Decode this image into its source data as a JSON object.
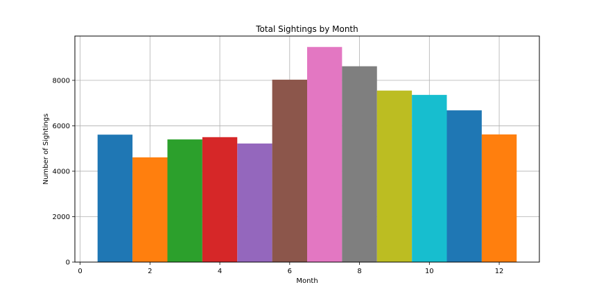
{
  "chart_data": {
    "type": "bar",
    "title": "Total Sightings by Month",
    "xlabel": "Month",
    "ylabel": "Number of Sightings",
    "categories": [
      1,
      2,
      3,
      4,
      5,
      6,
      7,
      8,
      9,
      10,
      11,
      12
    ],
    "values": [
      5610,
      4610,
      5400,
      5500,
      5220,
      8030,
      9470,
      8620,
      7550,
      7360,
      6680,
      5620
    ],
    "colors": [
      "#1f77b4",
      "#ff7f0e",
      "#2ca02c",
      "#d62728",
      "#9467bd",
      "#8c564b",
      "#e377c2",
      "#7f7f7f",
      "#bcbd22",
      "#17becf",
      "#1f77b4",
      "#ff7f0e"
    ],
    "bar_width": 1.0,
    "xlim": [
      -0.15,
      13.15
    ],
    "ylim": [
      0,
      9950
    ],
    "xticks": [
      "0",
      "2",
      "4",
      "6",
      "8",
      "10",
      "12"
    ],
    "yticks": [
      "0",
      "2000",
      "4000",
      "6000",
      "8000"
    ],
    "grid": true,
    "legend": "none"
  }
}
